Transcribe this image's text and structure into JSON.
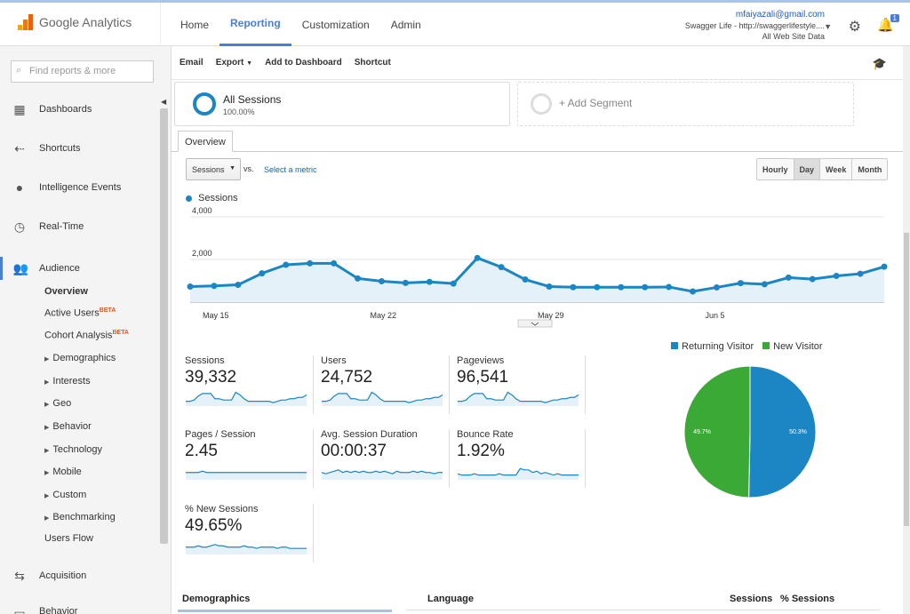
{
  "header": {
    "logo_text": "Google Analytics",
    "nav": [
      {
        "label": "Home"
      },
      {
        "label": "Reporting"
      },
      {
        "label": "Customization"
      },
      {
        "label": "Admin"
      }
    ],
    "account_email": "mfaiyazali@gmail.com",
    "account_property": "Swagger Life - http://swaggerlifestyle....",
    "account_view": "All Web Site Data",
    "notification_count": "1"
  },
  "sidebar": {
    "search_placeholder": "Find reports & more",
    "items": [
      {
        "label": "Dashboards"
      },
      {
        "label": "Shortcuts"
      },
      {
        "label": "Intelligence Events"
      },
      {
        "label": "Real-Time"
      },
      {
        "label": "Audience"
      }
    ],
    "audience_sub": [
      {
        "label": "Overview"
      },
      {
        "label": "Active Users",
        "badge": "BETA"
      },
      {
        "label": "Cohort Analysis",
        "badge": "BETA"
      },
      {
        "label": "Demographics"
      },
      {
        "label": "Interests"
      },
      {
        "label": "Geo"
      },
      {
        "label": "Behavior"
      },
      {
        "label": "Technology"
      },
      {
        "label": "Mobile"
      },
      {
        "label": "Custom"
      },
      {
        "label": "Benchmarking"
      },
      {
        "label": "Users Flow"
      }
    ],
    "acquisition_label": "Acquisition",
    "next_label": "Behavior"
  },
  "toolbar": {
    "email": "Email",
    "export": "Export",
    "add_dashboard": "Add to Dashboard",
    "shortcut": "Shortcut"
  },
  "segments": {
    "all_title": "All Sessions",
    "all_pct": "100.00%",
    "add_segment": "+ Add Segment"
  },
  "overview_tab": "Overview",
  "controls": {
    "metric_select": "Sessions",
    "vs": "vs.",
    "select_metric": "Select a metric",
    "granularity": [
      "Hourly",
      "Day",
      "Week",
      "Month"
    ],
    "active_granularity": "Day"
  },
  "chart_data": {
    "type": "area",
    "series": [
      {
        "name": "Sessions",
        "values": [
          730,
          760,
          810,
          1350,
          1750,
          1820,
          1820,
          1110,
          980,
          900,
          950,
          870,
          2070,
          1640,
          1060,
          730,
          700,
          700,
          700,
          700,
          710,
          500,
          690,
          890,
          840,
          1150,
          1080,
          1230,
          1330,
          1660
        ]
      }
    ],
    "x_tick_labels": [
      "May 15",
      "May 22",
      "May 29",
      "Jun 5"
    ],
    "y_tick_labels": [
      "2,000",
      "4,000"
    ],
    "ylim": [
      0,
      4000
    ],
    "color": "#1b86c3"
  },
  "metrics": [
    {
      "label": "Sessions",
      "value": "39,332",
      "spark": [
        3,
        3,
        4,
        7,
        9,
        9,
        9,
        5,
        5,
        4,
        4,
        4,
        10,
        8,
        5,
        3,
        3,
        3,
        3,
        3,
        3,
        2,
        3,
        4,
        4,
        5,
        5,
        6,
        6,
        8
      ]
    },
    {
      "label": "Users",
      "value": "24,752",
      "spark": [
        3,
        3,
        4,
        7,
        9,
        9,
        9,
        5,
        5,
        4,
        4,
        4,
        10,
        8,
        5,
        3,
        3,
        3,
        3,
        3,
        3,
        2,
        3,
        4,
        4,
        5,
        5,
        6,
        6,
        8
      ]
    },
    {
      "label": "Pageviews",
      "value": "96,541",
      "spark": [
        3,
        3,
        4,
        7,
        9,
        9,
        9,
        5,
        5,
        4,
        4,
        4,
        10,
        8,
        5,
        3,
        3,
        3,
        3,
        3,
        3,
        2,
        3,
        4,
        4,
        5,
        5,
        6,
        6,
        8
      ]
    },
    {
      "label": "Pages / Session",
      "value": "2.45",
      "spark": [
        5,
        5,
        5,
        5,
        6,
        5,
        5,
        5,
        5,
        5,
        5,
        5,
        5,
        5,
        5,
        5,
        5,
        5,
        5,
        5,
        5,
        5,
        5,
        5,
        5,
        5,
        5,
        5,
        5,
        5
      ]
    },
    {
      "label": "Avg. Session Duration",
      "value": "00:00:37",
      "spark": [
        5,
        4,
        5,
        6,
        7,
        5,
        6,
        5,
        6,
        5,
        6,
        5,
        5,
        6,
        5,
        6,
        5,
        4,
        6,
        5,
        5,
        5,
        6,
        5,
        6,
        5,
        5,
        4,
        5,
        5
      ]
    },
    {
      "label": "Bounce Rate",
      "value": "1.92%",
      "spark": [
        4,
        3,
        3,
        3,
        4,
        3,
        3,
        3,
        3,
        3,
        4,
        3,
        3,
        3,
        3,
        8,
        7,
        7,
        5,
        6,
        4,
        5,
        4,
        3,
        4,
        3,
        3,
        3,
        3,
        3
      ]
    },
    {
      "label": "% New Sessions",
      "value": "49.65%",
      "spark": [
        5,
        5,
        5,
        6,
        5,
        5,
        6,
        7,
        6,
        6,
        5,
        5,
        5,
        5,
        6,
        5,
        5,
        4,
        5,
        5,
        5,
        5,
        4,
        5,
        5,
        4,
        4,
        4,
        4,
        4
      ]
    }
  ],
  "pie_data": {
    "type": "pie",
    "slices": [
      {
        "name": "Returning Visitor",
        "value": 50.3,
        "label": "50.3%",
        "color": "#1b86c3"
      },
      {
        "name": "New Visitor",
        "value": 49.7,
        "label": "49.7%",
        "color": "#3ba935"
      }
    ]
  },
  "bottom": {
    "demographics": "Demographics",
    "language": "Language",
    "sessions": "Sessions",
    "pct_sessions": "% Sessions"
  }
}
